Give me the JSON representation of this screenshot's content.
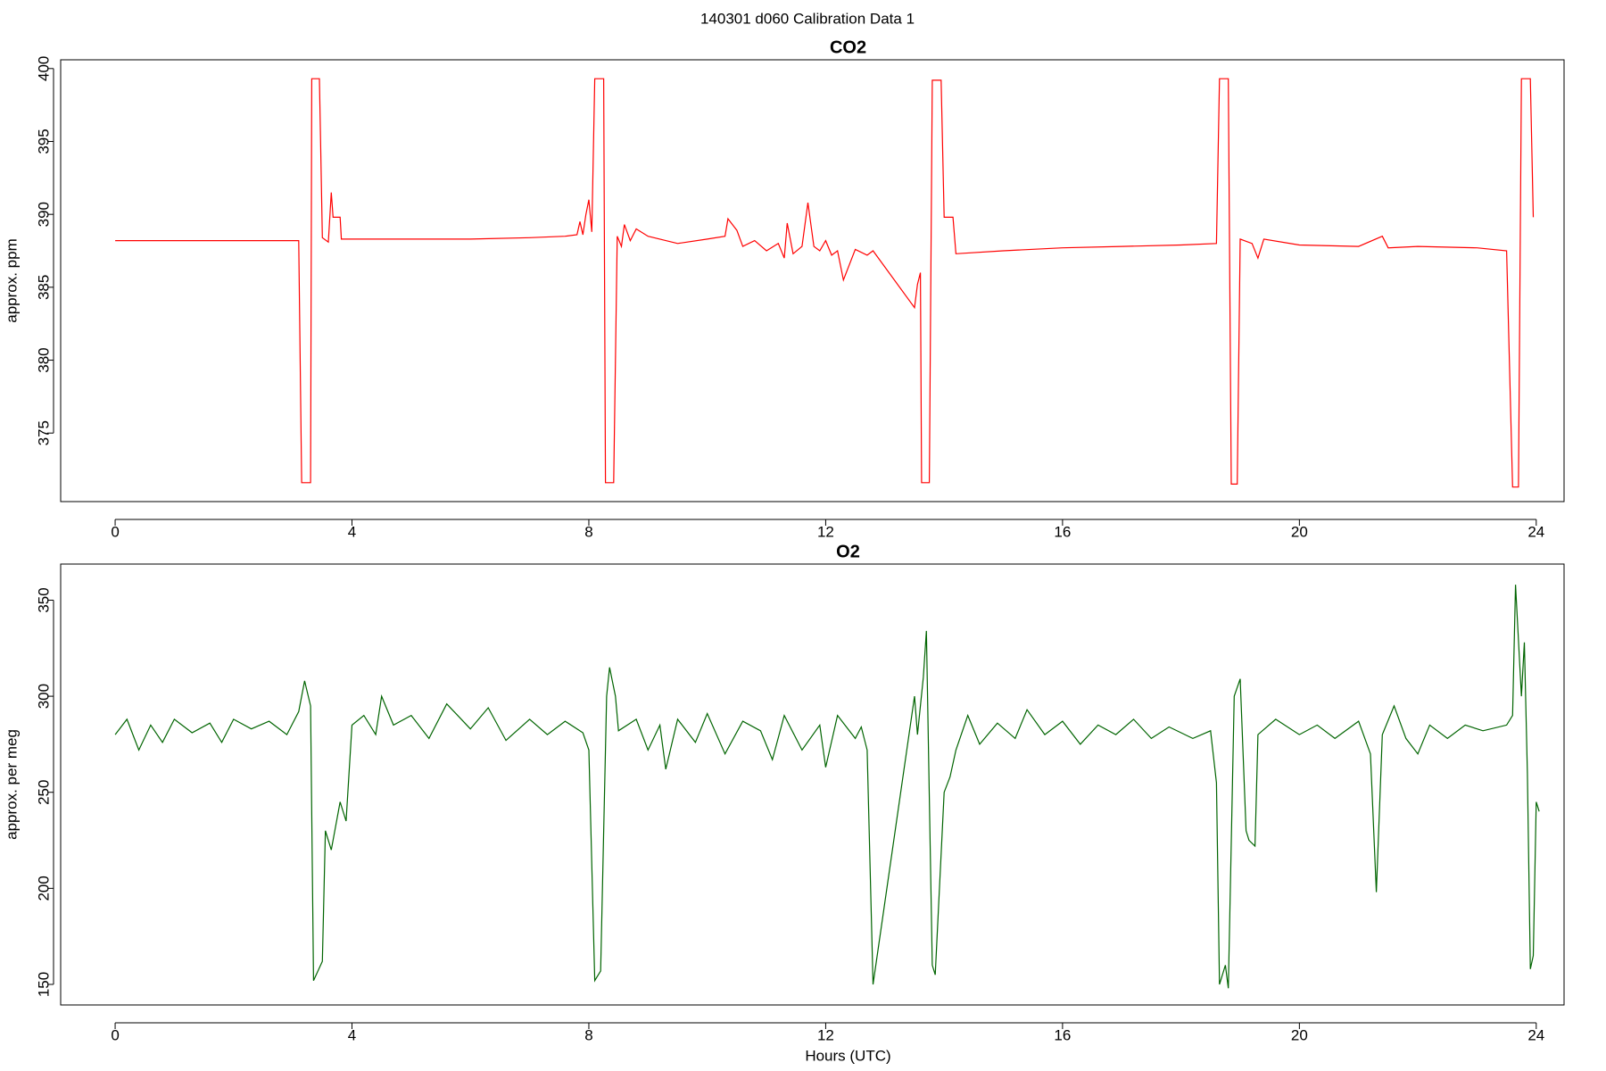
{
  "suptitle": "140301   d060   Calibration Data 1",
  "chart_data": [
    {
      "type": "line",
      "title": "CO2",
      "ylabel": "approx. ppm",
      "color": "#ff0000",
      "xlim": [
        -0.92,
        24.47
      ],
      "ylim": [
        370.3,
        400.6
      ],
      "xticks": [
        0,
        4,
        8,
        12,
        16,
        20,
        24
      ],
      "yticks": [
        375,
        380,
        385,
        390,
        395,
        400
      ],
      "x": [
        0,
        1,
        2,
        3.05,
        3.1,
        3.15,
        3.3,
        3.32,
        3.45,
        3.5,
        3.6,
        3.65,
        3.68,
        3.8,
        3.82,
        5,
        6,
        7,
        7.6,
        7.8,
        7.85,
        7.9,
        7.95,
        8.0,
        8.05,
        8.1,
        8.25,
        8.28,
        8.42,
        8.48,
        8.55,
        8.6,
        8.7,
        8.8,
        9,
        9.5,
        10,
        10.3,
        10.35,
        10.5,
        10.6,
        10.8,
        11,
        11.2,
        11.3,
        11.35,
        11.45,
        11.6,
        11.7,
        11.8,
        11.9,
        12,
        12.1,
        12.2,
        12.3,
        12.5,
        12.7,
        12.8,
        13.5,
        13.55,
        13.6,
        13.62,
        13.75,
        13.8,
        13.95,
        14.0,
        14.15,
        14.2,
        15,
        16,
        17,
        18,
        18.6,
        18.65,
        18.8,
        18.85,
        18.95,
        19.0,
        19.2,
        19.3,
        19.4,
        20,
        21,
        21.4,
        21.5,
        22,
        23,
        23.5,
        23.6,
        23.7,
        23.75,
        23.9,
        23.95
      ],
      "values": [
        388.2,
        388.2,
        388.2,
        388.2,
        388.2,
        371.6,
        371.6,
        399.3,
        399.3,
        388.4,
        388.1,
        391.5,
        389.8,
        389.8,
        388.3,
        388.3,
        388.3,
        388.4,
        388.5,
        388.6,
        389.5,
        388.6,
        390.0,
        391.0,
        388.8,
        399.3,
        399.3,
        371.6,
        371.6,
        388.5,
        387.8,
        389.3,
        388.2,
        389.0,
        388.5,
        388.0,
        388.3,
        388.5,
        389.7,
        388.9,
        387.8,
        388.2,
        387.5,
        388.0,
        387.0,
        389.4,
        387.3,
        387.8,
        390.8,
        387.8,
        387.5,
        388.2,
        387.2,
        387.5,
        385.5,
        387.6,
        387.2,
        387.5,
        383.6,
        385.2,
        386.0,
        371.6,
        371.6,
        399.2,
        399.2,
        389.8,
        389.8,
        387.3,
        387.5,
        387.7,
        387.8,
        387.9,
        388.0,
        399.3,
        399.3,
        371.5,
        371.5,
        388.3,
        388.0,
        387.0,
        388.3,
        387.9,
        387.8,
        388.5,
        387.7,
        387.8,
        387.7,
        387.5,
        371.3,
        371.3,
        399.3,
        399.3,
        389.8
      ]
    },
    {
      "type": "line",
      "title": "O2",
      "ylabel": "approx. per meg",
      "xlabel": "Hours (UTC)",
      "color": "#006400",
      "xlim": [
        -0.92,
        24.47
      ],
      "ylim": [
        139.3,
        368.8
      ],
      "xticks": [
        0,
        4,
        8,
        12,
        16,
        20,
        24
      ],
      "yticks": [
        150,
        200,
        250,
        300,
        350
      ],
      "x": [
        0,
        0.2,
        0.4,
        0.6,
        0.8,
        1,
        1.3,
        1.6,
        1.8,
        2,
        2.3,
        2.6,
        2.9,
        3.1,
        3.2,
        3.3,
        3.35,
        3.5,
        3.55,
        3.65,
        3.8,
        3.9,
        4.0,
        4.2,
        4.4,
        4.5,
        4.7,
        5,
        5.3,
        5.6,
        6,
        6.3,
        6.6,
        7,
        7.3,
        7.6,
        7.9,
        8.0,
        8.1,
        8.2,
        8.3,
        8.35,
        8.45,
        8.5,
        8.8,
        9.0,
        9.2,
        9.3,
        9.5,
        9.8,
        10,
        10.3,
        10.6,
        10.9,
        11.1,
        11.3,
        11.6,
        11.9,
        12.0,
        12.2,
        12.5,
        12.6,
        12.7,
        12.8,
        13.5,
        13.55,
        13.65,
        13.7,
        13.8,
        13.85,
        14.0,
        14.1,
        14.2,
        14.4,
        14.6,
        14.9,
        15.2,
        15.4,
        15.7,
        16,
        16.3,
        16.6,
        16.9,
        17.2,
        17.5,
        17.8,
        18.2,
        18.5,
        18.6,
        18.65,
        18.75,
        18.8,
        18.9,
        19.0,
        19.1,
        19.15,
        19.25,
        19.3,
        19.6,
        20,
        20.3,
        20.6,
        21,
        21.2,
        21.3,
        21.4,
        21.6,
        21.8,
        22,
        22.2,
        22.5,
        22.8,
        23.1,
        23.5,
        23.6,
        23.65,
        23.75,
        23.8,
        23.85,
        23.9,
        23.95,
        24.0,
        24.05
      ],
      "values": [
        280,
        288,
        272,
        285,
        276,
        288,
        281,
        286,
        276,
        288,
        283,
        287,
        280,
        292,
        308,
        295,
        152,
        162,
        230,
        220,
        245,
        235,
        285,
        290,
        280,
        300,
        285,
        290,
        278,
        296,
        283,
        294,
        277,
        288,
        280,
        287,
        281,
        272,
        152,
        157,
        300,
        315,
        300,
        282,
        288,
        272,
        285,
        262,
        288,
        276,
        291,
        270,
        287,
        282,
        267,
        290,
        272,
        285,
        263,
        290,
        278,
        284,
        272,
        150,
        300,
        280,
        310,
        334,
        160,
        155,
        250,
        258,
        272,
        290,
        275,
        286,
        278,
        293,
        280,
        287,
        275,
        285,
        280,
        288,
        278,
        284,
        278,
        282,
        255,
        150,
        160,
        148,
        300,
        309,
        230,
        225,
        222,
        280,
        288,
        280,
        285,
        278,
        287,
        270,
        198,
        280,
        295,
        278,
        270,
        285,
        278,
        285,
        282,
        285,
        290,
        358,
        300,
        328,
        260,
        158,
        165,
        245,
        240
      ]
    }
  ]
}
